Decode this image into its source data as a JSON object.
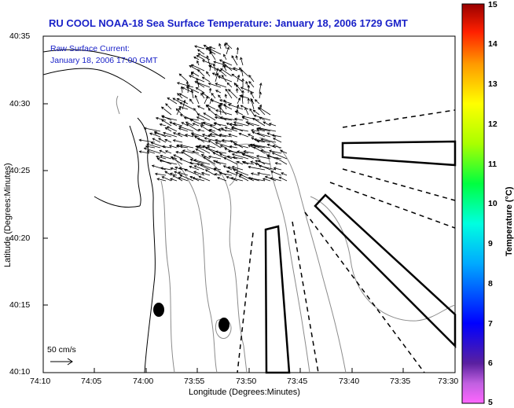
{
  "title": "RU COOL  NOAA-18  Sea Surface Temperature:  January 18, 2006 1729 GMT",
  "annotation": {
    "line1": "Raw Surface Current:",
    "line2": "January 18, 2006 17:00 GMT"
  },
  "axes": {
    "xlabel": "Longitude (Degrees:Minutes)",
    "ylabel": "Latitude (Degrees:Minutes)",
    "x_ticks": [
      "74:10",
      "74:05",
      "74:00",
      "73:55",
      "73:50",
      "73:45",
      "73:40",
      "73:35",
      "73:30"
    ],
    "y_ticks": [
      "40:35",
      "40:30",
      "40:25",
      "40:20",
      "40:15",
      "40:10"
    ]
  },
  "scale_label": "50 cm/s",
  "colorbar": {
    "label": "Temperature (°C)",
    "ticks": [
      "15",
      "14",
      "13",
      "12",
      "11",
      "10",
      "9",
      "8",
      "7",
      "6",
      "5"
    ]
  },
  "colors": {
    "title": "#1a22c8",
    "coast": "#000000",
    "bathymetry": "#8c8c8c",
    "vectors": "#000000"
  }
}
